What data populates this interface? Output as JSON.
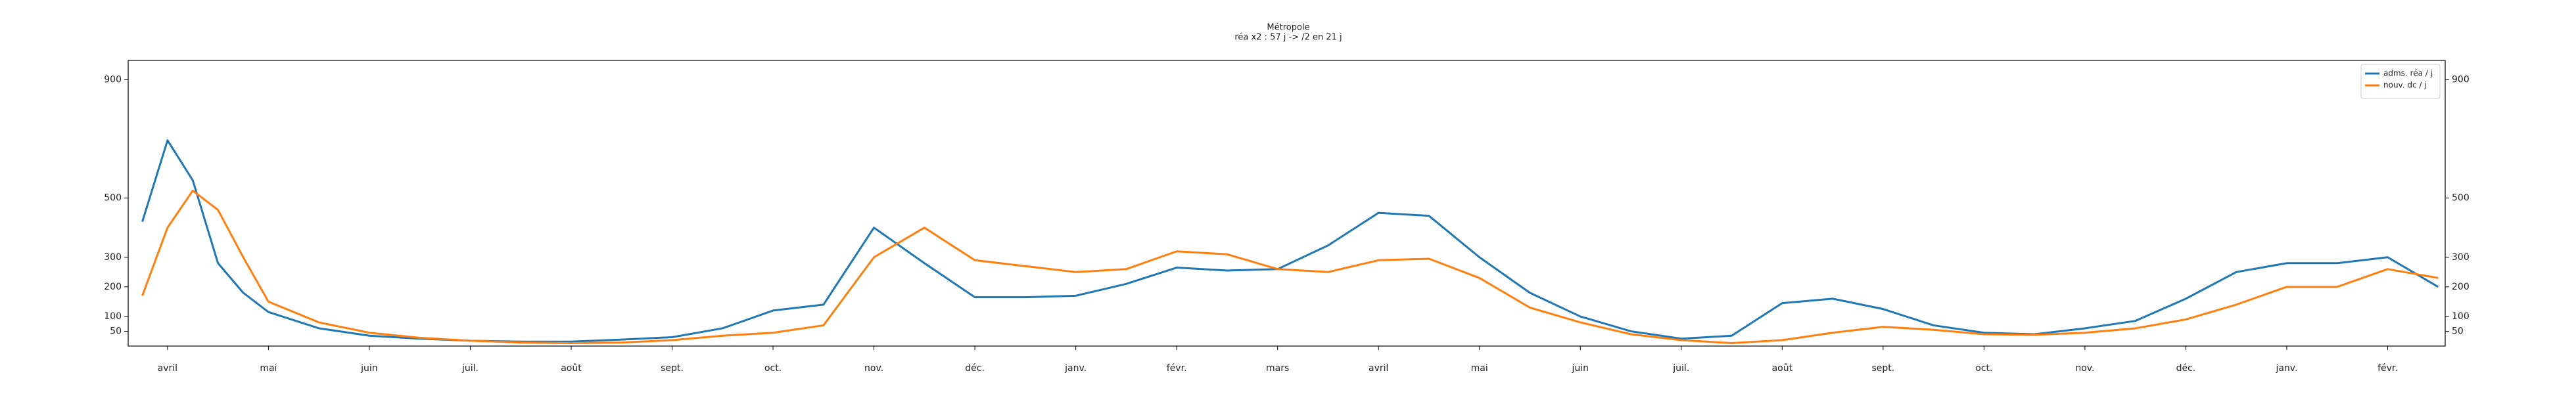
{
  "chart_data": {
    "type": "line",
    "title": "Métropole",
    "subtitle": "réa x2 : 57 j -> /2 en 21 j",
    "x": [
      -0.25,
      0,
      0.25,
      0.5,
      0.75,
      1,
      1.5,
      2,
      2.5,
      3,
      3.5,
      4,
      4.5,
      5,
      5.5,
      6,
      6.5,
      7,
      7.5,
      8,
      8.5,
      9,
      9.5,
      10,
      10.5,
      11,
      11.5,
      12,
      12.5,
      13,
      13.5,
      14,
      14.5,
      15,
      15.5,
      16,
      16.5,
      17,
      17.5,
      18,
      18.5,
      19,
      19.5,
      20,
      20.5,
      21,
      21.5,
      22,
      22.5
    ],
    "series": [
      {
        "name": "adms. réa / j",
        "color": "#1f77b4",
        "values": [
          420,
          695,
          560,
          280,
          180,
          115,
          60,
          35,
          25,
          18,
          15,
          15,
          22,
          30,
          60,
          120,
          140,
          400,
          280,
          165,
          165,
          170,
          210,
          265,
          255,
          260,
          340,
          450,
          440,
          300,
          180,
          100,
          50,
          25,
          35,
          145,
          160,
          125,
          70,
          45,
          40,
          60,
          85,
          160,
          250,
          280,
          280,
          300,
          200
        ]
      },
      {
        "name": "nouv. dc / j",
        "color": "#ff7f0e",
        "values": [
          170,
          400,
          525,
          460,
          300,
          150,
          80,
          45,
          28,
          18,
          12,
          10,
          12,
          20,
          35,
          45,
          70,
          300,
          400,
          290,
          270,
          250,
          260,
          320,
          310,
          260,
          250,
          290,
          295,
          230,
          130,
          80,
          40,
          20,
          10,
          20,
          45,
          65,
          55,
          40,
          38,
          45,
          60,
          90,
          140,
          200,
          200,
          260,
          230
        ]
      }
    ],
    "xlim": [
      -0.39,
      22.57
    ],
    "xticks": [
      {
        "value": 0,
        "label": "avril"
      },
      {
        "value": 1,
        "label": "mai"
      },
      {
        "value": 2,
        "label": "juin"
      },
      {
        "value": 3,
        "label": "juil."
      },
      {
        "value": 4,
        "label": "août"
      },
      {
        "value": 5,
        "label": "sept."
      },
      {
        "value": 6,
        "label": "oct."
      },
      {
        "value": 7,
        "label": "nov."
      },
      {
        "value": 8,
        "label": "déc."
      },
      {
        "value": 9,
        "label": "janv."
      },
      {
        "value": 10,
        "label": "févr."
      },
      {
        "value": 11,
        "label": "mars"
      },
      {
        "value": 12,
        "label": "avril"
      },
      {
        "value": 13,
        "label": "mai"
      },
      {
        "value": 14,
        "label": "juin"
      },
      {
        "value": 15,
        "label": "juil."
      },
      {
        "value": 16,
        "label": "août"
      },
      {
        "value": 17,
        "label": "sept."
      },
      {
        "value": 18,
        "label": "oct."
      },
      {
        "value": 19,
        "label": "nov."
      },
      {
        "value": 20,
        "label": "déc."
      },
      {
        "value": 21,
        "label": "janv."
      },
      {
        "value": 22,
        "label": "févr."
      }
    ],
    "ylim": [
      0,
      965
    ],
    "yticks": [
      50,
      100,
      200,
      300,
      500,
      900
    ],
    "legend": "upper right"
  }
}
